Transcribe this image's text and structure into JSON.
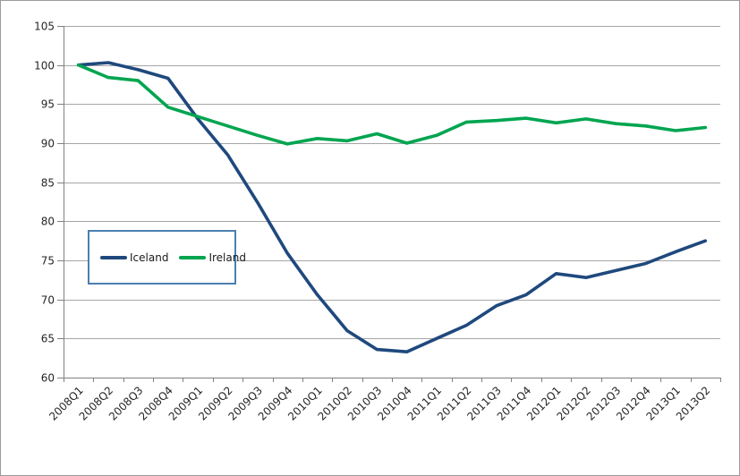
{
  "chart_data": {
    "type": "line",
    "title": "",
    "xlabel": "",
    "ylabel": "",
    "categories": [
      "2008Q1",
      "2008Q2",
      "2008Q3",
      "2008Q4",
      "2009Q1",
      "2009Q2",
      "2009Q3",
      "2009Q4",
      "2010Q1",
      "2010Q2",
      "2010Q3",
      "2010Q4",
      "2011Q1",
      "2011Q2",
      "2011Q3",
      "2011Q4",
      "2012Q1",
      "2012Q2",
      "2012Q3",
      "2012Q4",
      "2013Q1",
      "2013Q2"
    ],
    "series": [
      {
        "name": "Iceland",
        "color": "#1F497D",
        "values": [
          100.0,
          100.3,
          99.4,
          98.3,
          93.1,
          88.5,
          82.4,
          75.9,
          70.6,
          66.0,
          63.6,
          63.3,
          65.0,
          66.7,
          69.2,
          70.6,
          73.3,
          72.8,
          73.7,
          74.6,
          76.1,
          77.5
        ]
      },
      {
        "name": "Ireland",
        "color": "#00A550",
        "values": [
          100.0,
          98.4,
          98.0,
          94.6,
          93.4,
          92.2,
          91.0,
          89.9,
          90.6,
          90.3,
          91.2,
          90.0,
          91.0,
          92.7,
          92.9,
          93.2,
          92.6,
          93.1,
          92.5,
          92.2,
          91.6,
          92.0
        ]
      }
    ],
    "ylim": [
      60,
      105
    ],
    "y_ticks": [
      105,
      100,
      95,
      90,
      85,
      80,
      75,
      70,
      65,
      60
    ],
    "grid": true,
    "legend_position": "inside-left-middle",
    "x_label_rotation_deg": 45,
    "colors": {
      "background": "#FFFFFF",
      "gridline": "#A6A6A6",
      "axis": "#808080",
      "tick_label": "#262626",
      "legend_border": "#4C7FB0",
      "frame_border": "#9B9B9B"
    }
  }
}
